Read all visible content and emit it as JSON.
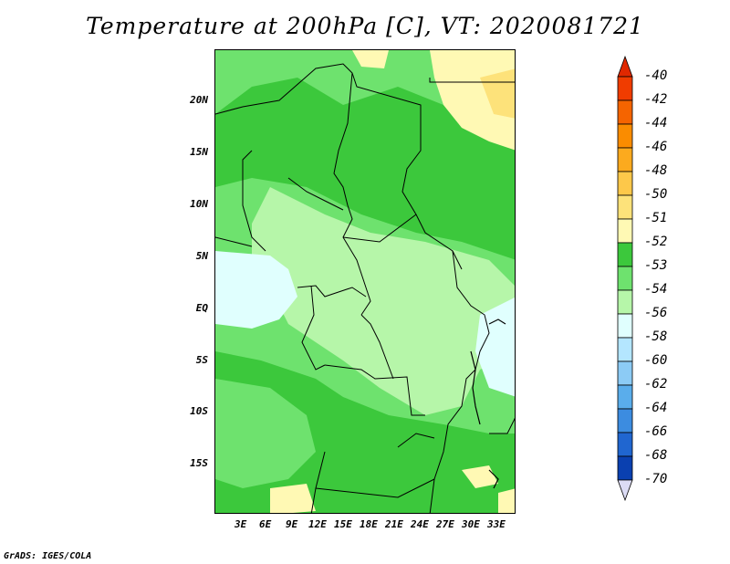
{
  "title": "Temperature at 200hPa [C], VT: 2020081721",
  "credit": "GrADS: IGES/COLA",
  "lat_labels": [
    "20N",
    "15N",
    "10N",
    "5N",
    "EQ",
    "5S",
    "10S",
    "15S"
  ],
  "lon_labels": [
    "3E",
    "6E",
    "9E",
    "12E",
    "15E",
    "18E",
    "21E",
    "24E",
    "27E",
    "30E",
    "33E"
  ],
  "colorbar": {
    "labels": [
      "-40",
      "-42",
      "-44",
      "-46",
      "-48",
      "-50",
      "-51",
      "-52",
      "-53",
      "-54",
      "-56",
      "-58",
      "-60",
      "-62",
      "-64",
      "-66",
      "-68",
      "-70"
    ],
    "colors": [
      "#f03c00",
      "#f56400",
      "#fa8c00",
      "#fcaa1e",
      "#fdc84a",
      "#fde27a",
      "#fff9b4",
      "#3cc83c",
      "#6ee26e",
      "#b6f6a9",
      "#e0fffe",
      "#b4e6ff",
      "#8ccbf5",
      "#5aadeb",
      "#3c8ce0",
      "#2066d0",
      "#0a40b0",
      "#000078"
    ],
    "top_arrow_color": "#e02800",
    "bottom_arrow_color": "#dcdcf5"
  },
  "palette": {
    "green_dark": "#3cc83c",
    "green_mid": "#6ee26e",
    "green_light": "#b6f6a9",
    "cyan_pale": "#e0fffe",
    "yellow_pale": "#fff9b4",
    "yellow": "#fde27a"
  }
}
